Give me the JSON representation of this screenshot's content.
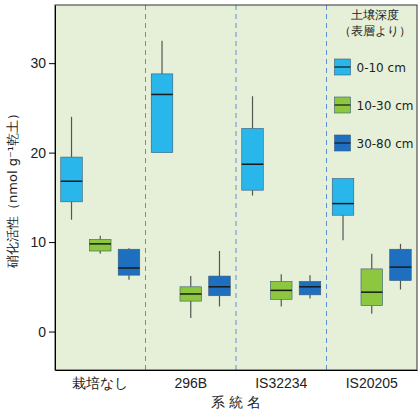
{
  "chart_data": {
    "type": "box",
    "y_label": "硝化活性（nmol g⁻¹乾土）",
    "x_label": "系 統 名",
    "categories": [
      "栽培なし",
      "296B",
      "IS32234",
      "IS20205"
    ],
    "legend": "upper right",
    "legend_title": [
      "土壌深度",
      "（表層より）"
    ],
    "ylim": [
      -4.3,
      36.5
    ],
    "yticks": [
      0,
      10,
      20,
      30
    ],
    "grid": false,
    "series": [
      {
        "name": "0-10 cm",
        "color": "#29b6ea",
        "min": [
          12.5,
          20.0,
          15.2,
          10.2
        ],
        "q1": [
          14.5,
          20.0,
          15.8,
          13.0
        ],
        "median": [
          16.8,
          26.5,
          18.7,
          14.3
        ],
        "q3": [
          19.5,
          28.8,
          22.7,
          17.1
        ],
        "max": [
          24.0,
          32.5,
          26.3,
          17.1
        ]
      },
      {
        "name": "10-30 cm",
        "color": "#8dc63f",
        "min": [
          8.7,
          1.5,
          2.8,
          2.0
        ],
        "q1": [
          9.0,
          3.4,
          3.6,
          2.9
        ],
        "median": [
          9.8,
          4.2,
          4.6,
          4.4
        ],
        "q3": [
          10.3,
          5.0,
          5.6,
          7.0
        ],
        "max": [
          10.7,
          6.2,
          6.4,
          8.7
        ]
      },
      {
        "name": "30-80 cm",
        "color": "#1f6fc0",
        "min": [
          5.8,
          2.8,
          3.7,
          4.7
        ],
        "q1": [
          6.3,
          4.0,
          4.1,
          5.7
        ],
        "median": [
          7.1,
          5.0,
          5.0,
          7.2
        ],
        "q3": [
          9.2,
          6.2,
          5.6,
          9.2
        ],
        "max": [
          9.3,
          9.0,
          6.3,
          9.8
        ]
      }
    ]
  }
}
